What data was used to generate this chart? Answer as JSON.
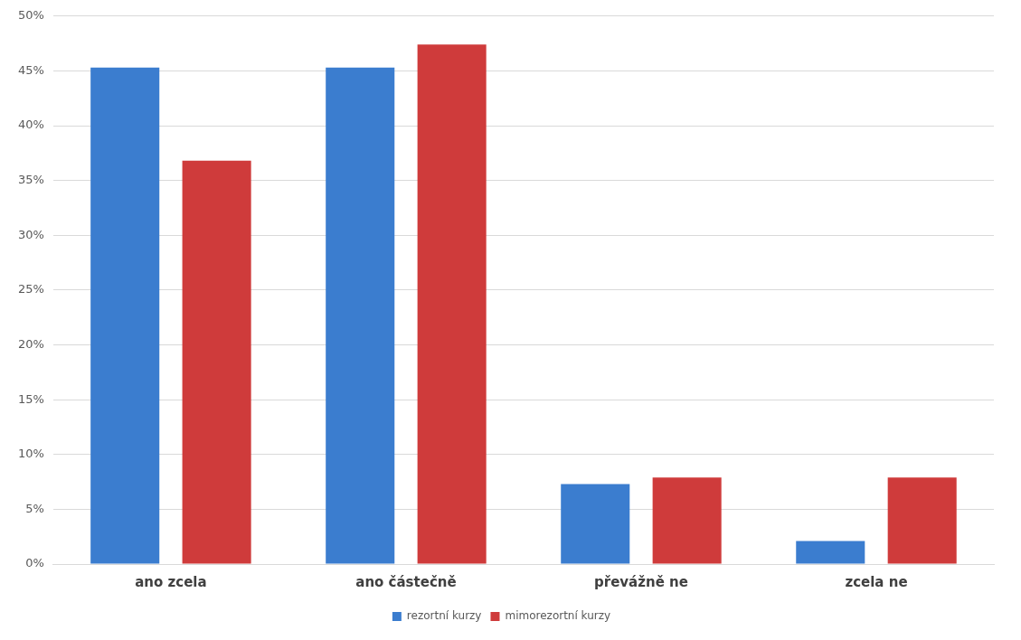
{
  "chart_data": {
    "type": "bar",
    "categories": [
      "ano zcela",
      "ano částečně",
      "převážně ne",
      "zcela ne"
    ],
    "series": [
      {
        "name": "rezortní kurzy",
        "color": "#3b7dcf",
        "values": [
          45.3,
          45.3,
          7.3,
          2.1
        ]
      },
      {
        "name": "mimorezortní kurzy",
        "color": "#cf3b3b",
        "values": [
          36.8,
          47.4,
          7.9,
          7.9
        ]
      }
    ],
    "ylim": [
      0,
      50
    ],
    "yticks": [
      {
        "value": 0,
        "label": "0%"
      },
      {
        "value": 5,
        "label": "5%"
      },
      {
        "value": 10,
        "label": "10%"
      },
      {
        "value": 15,
        "label": "15%"
      },
      {
        "value": 20,
        "label": "20%"
      },
      {
        "value": 25,
        "label": "25%"
      },
      {
        "value": 30,
        "label": "30%"
      },
      {
        "value": 35,
        "label": "35%"
      },
      {
        "value": 40,
        "label": "40%"
      },
      {
        "value": 45,
        "label": "45%"
      },
      {
        "value": 50,
        "label": "50%"
      }
    ],
    "grid": "y",
    "legend": "bottom"
  }
}
